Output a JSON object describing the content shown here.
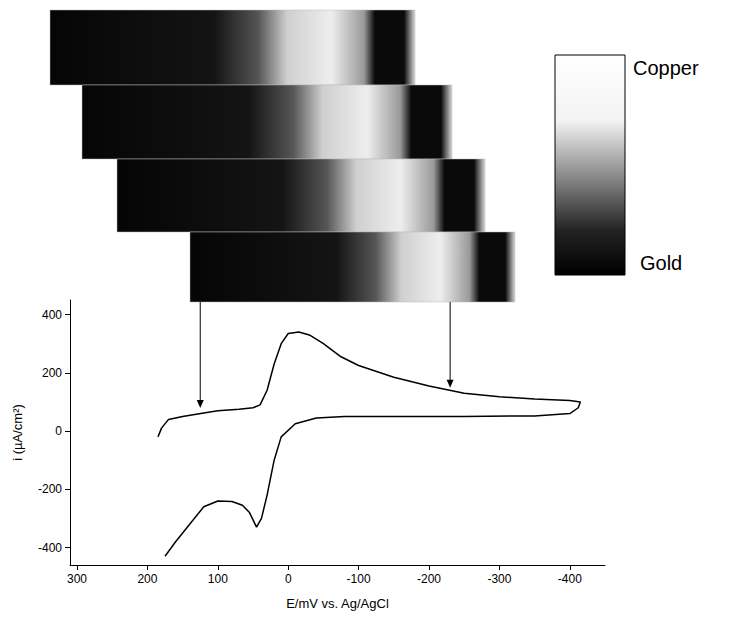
{
  "chart_data": {
    "type": "line",
    "x_label": "E/mV vs. Ag/AgCl",
    "y_label": "i (µA/cm²)",
    "x": [
      185,
      180,
      170,
      150,
      120,
      100,
      70,
      50,
      40,
      30,
      20,
      10,
      0,
      -15,
      -30,
      -50,
      -75,
      -100,
      -150,
      -200,
      -250,
      -300,
      -350,
      -400,
      -415,
      -412,
      -400,
      -350,
      -250,
      -150,
      -80,
      -40,
      -10,
      10,
      20,
      30,
      38,
      45,
      55,
      65,
      80,
      100,
      120,
      140,
      160,
      175
    ],
    "values": [
      -20,
      10,
      40,
      50,
      62,
      70,
      75,
      80,
      90,
      140,
      230,
      300,
      335,
      340,
      330,
      300,
      255,
      225,
      185,
      155,
      130,
      118,
      110,
      105,
      100,
      80,
      60,
      52,
      50,
      50,
      50,
      45,
      25,
      -20,
      -100,
      -220,
      -300,
      -330,
      -280,
      -255,
      -242,
      -240,
      -260,
      -320,
      -380,
      -430
    ],
    "color": "#000000",
    "xlim": [
      310,
      -450
    ],
    "ylim": [
      -460,
      450
    ],
    "xticks": [
      300,
      200,
      100,
      0,
      -100,
      -200,
      -300,
      -400
    ],
    "yticks": [
      -400,
      -200,
      0,
      200,
      400
    ],
    "grid": false,
    "arrows": [
      {
        "x": 125,
        "y": 65
      },
      {
        "x": -230,
        "y": 135
      }
    ],
    "color_scale": {
      "top": "Copper",
      "bottom": "Gold"
    }
  }
}
